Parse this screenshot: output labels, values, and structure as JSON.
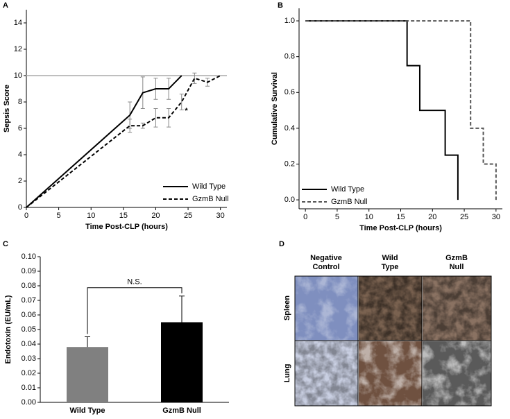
{
  "chart_data": [
    {
      "type": "line",
      "panel_label": "A",
      "x_label": "Time Post-CLP (hours)",
      "y_label": "Sepsis Score",
      "xlim": [
        0,
        31
      ],
      "xticks": [
        0,
        5,
        10,
        15,
        20,
        25,
        30
      ],
      "ylim": [
        0,
        15
      ],
      "yticks": [
        0,
        2,
        4,
        6,
        8,
        10,
        12,
        14
      ],
      "reference_line": 10,
      "reference_color": "#bfbfbf",
      "legend": "bottom-right",
      "annotation": {
        "text": "*",
        "x": 24.5,
        "y": 7.3
      },
      "series": [
        {
          "name": "Wild Type",
          "color": "#000000",
          "dashed": false,
          "x": [
            0,
            16,
            18,
            20,
            22,
            24
          ],
          "values": [
            0,
            7,
            8.7,
            9,
            9,
            10
          ],
          "errors": [
            null,
            1.0,
            1.2,
            0.8,
            0.8,
            null
          ]
        },
        {
          "name": "GzmB Null",
          "color": "#000000",
          "dashed": true,
          "x": [
            0,
            16,
            18,
            20,
            22,
            24,
            26,
            28,
            30
          ],
          "values": [
            0,
            6.2,
            6.2,
            6.8,
            6.8,
            8.0,
            9.8,
            9.5,
            10
          ],
          "errors": [
            null,
            0.5,
            0.2,
            0.7,
            0.7,
            0.6,
            0.4,
            0.3,
            null
          ]
        }
      ]
    },
    {
      "type": "step",
      "panel_label": "B",
      "x_label": "Time Post-CLP (hours)",
      "y_label": "Cumulative Survival",
      "xlim": [
        -1,
        31
      ],
      "xticks": [
        0,
        5,
        10,
        15,
        20,
        25,
        30
      ],
      "ylim": [
        -0.05,
        1.07
      ],
      "yticks": [
        {
          "value": 0,
          "label": "0.0"
        },
        0.2,
        0.4,
        0.6,
        0.8,
        {
          "value": 1,
          "label": "1.0"
        }
      ],
      "legend": "bottom-left",
      "series": [
        {
          "name": "Wild Type",
          "color": "#000000",
          "dashed": false,
          "x": [
            0,
            16,
            16,
            18,
            18,
            22,
            22,
            24,
            24
          ],
          "values": [
            1,
            1,
            0.75,
            0.75,
            0.5,
            0.5,
            0.25,
            0.25,
            0
          ]
        },
        {
          "name": "GzmB Null",
          "color": "#555555",
          "dashed": true,
          "x": [
            0,
            26,
            26,
            28,
            28,
            30,
            30
          ],
          "values": [
            1,
            1,
            0.4,
            0.4,
            0.2,
            0.2,
            0
          ]
        }
      ]
    },
    {
      "type": "bar",
      "panel_label": "C",
      "y_label": "Endotoxin (EU/mL)",
      "categories": [
        "Wild Type",
        "GzmB Null"
      ],
      "values": [
        0.038,
        0.055
      ],
      "errors": [
        0.007,
        0.018
      ],
      "colors": [
        "#808080",
        "#000000"
      ],
      "ylim": [
        0,
        0.1
      ],
      "yticks": [
        {
          "value": 0,
          "label": "0.00"
        },
        {
          "value": 0.01,
          "label": "0.01"
        },
        {
          "value": 0.02,
          "label": "0.02"
        },
        {
          "value": 0.03,
          "label": "0.03"
        },
        {
          "value": 0.04,
          "label": "0.04"
        },
        {
          "value": 0.05,
          "label": "0.05"
        },
        {
          "value": 0.06,
          "label": "0.06"
        },
        {
          "value": 0.07,
          "label": "0.07"
        },
        {
          "value": 0.08,
          "label": "0.08"
        },
        {
          "value": 0.09,
          "label": "0.09"
        },
        {
          "value": 0.1,
          "label": "0.10"
        }
      ],
      "bracket_label": "N.S."
    }
  ],
  "panel_d": {
    "label": "D",
    "columns": [
      [
        "Negative",
        "Control"
      ],
      [
        "Wild",
        "Type"
      ],
      [
        "GzmB",
        "Null"
      ]
    ],
    "rows": [
      "Spleen",
      "Lung"
    ]
  }
}
